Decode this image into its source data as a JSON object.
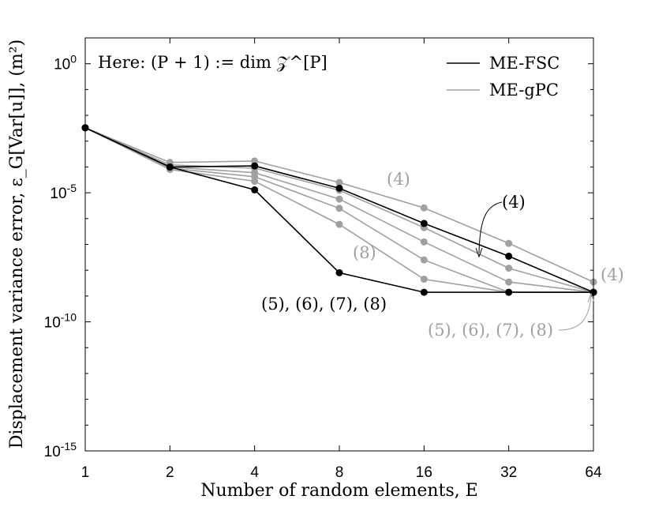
{
  "chart_data": {
    "type": "line",
    "y_scale": "log",
    "x_scale": "log2",
    "x": [
      1,
      2,
      4,
      8,
      16,
      32,
      64
    ],
    "xticks": [
      "1",
      "2",
      "4",
      "8",
      "16",
      "32",
      "64"
    ],
    "ytick_exponents": [
      0,
      -5,
      -10,
      -15
    ],
    "ylim_log10": [
      -15,
      1
    ],
    "xlabel": "Number of random elements, E",
    "ylabel": "Displacement variance error, ε_G[Var[u]], (m²)",
    "annotation_top": "Here: (P + 1) := dim 𝒵^[P]",
    "legend": {
      "position": "top-right",
      "items": [
        "ME-FSC",
        "ME-gPC"
      ]
    },
    "labels": {
      "gpc_4_mid": "(4)",
      "fsc_4_mid": "(4)",
      "gpc_8_mid": "(8)",
      "fsc_5to8": "(5), (6), (7), (8)",
      "gpc_4_end": "(4)",
      "gpc_5to8_end": "(5), (6), (7), (8)"
    },
    "colors": {
      "fsc": "#000000",
      "gpc": "#a0a0a0"
    },
    "series": [
      {
        "group": "ME-gPC",
        "order": "(4)",
        "values": [
          0.0033,
          0.00015,
          0.00017,
          2.5e-05,
          2.6e-06,
          1.1e-07,
          3.5e-09
        ]
      },
      {
        "group": "ME-gPC",
        "order": "(5)",
        "values": [
          0.0033,
          0.00012,
          9e-05,
          1.25e-05,
          4.5e-07,
          1.2e-08,
          1.4e-09
        ]
      },
      {
        "group": "ME-gPC",
        "order": "(6)",
        "values": [
          0.0033,
          0.0001,
          6e-05,
          5.7e-06,
          1.25e-07,
          3.5e-09,
          1.4e-09
        ]
      },
      {
        "group": "ME-gPC",
        "order": "(7)",
        "values": [
          0.0033,
          9e-05,
          4.2e-05,
          2.5e-06,
          2.5e-08,
          1.4e-09,
          1.4e-09
        ]
      },
      {
        "group": "ME-gPC",
        "order": "(8)",
        "values": [
          0.0033,
          8e-05,
          2.8e-05,
          6e-07,
          4.5e-09,
          1.4e-09,
          1.4e-09
        ]
      },
      {
        "group": "ME-FSC",
        "order": "(4)",
        "values": [
          0.0033,
          0.0001,
          0.00011,
          1.5e-05,
          6.5e-07,
          3.5e-08,
          1.4e-09
        ]
      },
      {
        "group": "ME-FSC",
        "order": "(5)-(8)",
        "values": [
          0.0033,
          0.0001,
          1.3e-05,
          8e-09,
          1.4e-09,
          1.4e-09,
          1.4e-09
        ]
      }
    ]
  }
}
